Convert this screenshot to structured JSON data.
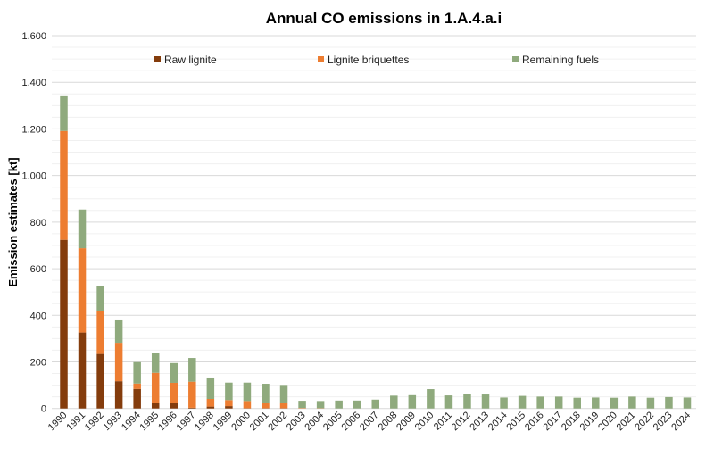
{
  "chart_data": {
    "type": "bar",
    "stacked": true,
    "title": "Annual CO emissions in 1.A.4.a.i",
    "xlabel": "",
    "ylabel": "Emission estimates [kt]",
    "ylim": [
      0,
      1600
    ],
    "yticks": [
      0,
      200,
      400,
      600,
      800,
      1000,
      1200,
      1400,
      1600
    ],
    "ytick_labels": [
      "0",
      "200",
      "400",
      "600",
      "800",
      "1.000",
      "1.200",
      "1.400",
      "1.600"
    ],
    "grid": true,
    "legend_position": "top",
    "categories": [
      "1990",
      "1991",
      "1992",
      "1993",
      "1994",
      "1995",
      "1996",
      "1997",
      "1998",
      "1999",
      "2000",
      "2001",
      "2002",
      "2003",
      "2004",
      "2005",
      "2006",
      "2007",
      "2008",
      "2009",
      "2010",
      "2011",
      "2012",
      "2013",
      "2014",
      "2015",
      "2016",
      "2017",
      "2018",
      "2019",
      "2020",
      "2021",
      "2022",
      "2023",
      "2024"
    ],
    "series": [
      {
        "name": "Raw lignite",
        "color": "#843c0c",
        "values": [
          724,
          326,
          234,
          117,
          84,
          23,
          22,
          3,
          8,
          10,
          1,
          1,
          1,
          0,
          0,
          0,
          0,
          0,
          0,
          0,
          0,
          0,
          0,
          0,
          0,
          0,
          0,
          0,
          0,
          0,
          0,
          0,
          0,
          0,
          0
        ]
      },
      {
        "name": "Lignite briquettes",
        "color": "#ed7d31",
        "values": [
          467,
          362,
          186,
          165,
          23,
          130,
          88,
          112,
          33,
          26,
          31,
          22,
          22,
          2,
          1,
          0,
          0,
          0,
          0,
          0,
          0,
          0,
          0,
          0,
          0,
          0,
          0,
          0,
          0,
          0,
          0,
          0,
          0,
          0,
          0
        ]
      },
      {
        "name": "Remaining fuels",
        "color": "#8faa7d",
        "values": [
          149,
          166,
          104,
          100,
          92,
          85,
          85,
          102,
          92,
          75,
          79,
          83,
          78,
          31,
          31,
          34,
          34,
          38,
          55,
          57,
          83,
          56,
          63,
          60,
          47,
          54,
          51,
          51,
          46,
          47,
          46,
          51,
          46,
          49,
          47
        ]
      }
    ]
  }
}
